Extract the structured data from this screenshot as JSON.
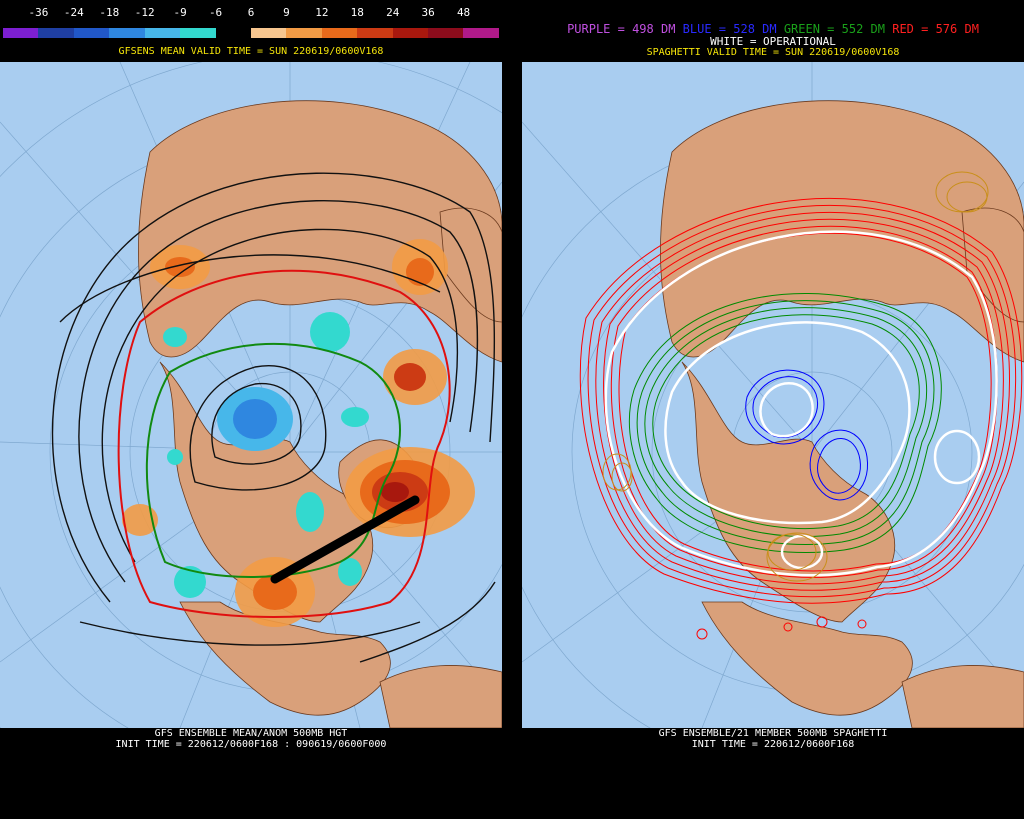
{
  "left": {
    "scale_labels": [
      "-36",
      "-24",
      "-18",
      "-12",
      "-9",
      "-6",
      "6",
      "9",
      "12",
      "18",
      "24",
      "36",
      "48"
    ],
    "scale_colors": [
      "#7d1fd1",
      "#1f3fa3",
      "#2158c9",
      "#2f87e0",
      "#47b7ea",
      "#33d9cf",
      "#000000",
      "#f7c68f",
      "#f29b45",
      "#e86a1b",
      "#cc3b14",
      "#a8180e",
      "#8c0c1c",
      "#b01a8a"
    ],
    "valid_title": "GFSENS MEAN VALID TIME = SUN 220619/0600V168",
    "bottom_title": "GFS ENSEMBLE MEAN/ANOM 500MB HGT",
    "init_line": "INIT TIME = 220612/0600F168 : 090619/0600F000"
  },
  "right": {
    "legend_purple": "PURPLE = 498 DM",
    "legend_blue": "BLUE = 528 DM",
    "legend_green": "GREEN = 552 DM",
    "legend_red": "RED = 576 DM",
    "legend_white": "WHITE = OPERATIONAL",
    "valid_title": "SPAGHETTI VALID TIME = SUN 220619/0600V168",
    "bottom_title": "GFS ENSEMBLE/21 MEMBER 500MB SPAGHETTI",
    "init_line": "INIT TIME = 220612/0600F168"
  },
  "colors": {
    "ocean": "#a9cdf0",
    "land": "#d9a07a",
    "border": "#6b3a1e",
    "spaghetti_red": "#ff0000",
    "spaghetti_green": "#008a00",
    "spaghetti_blue": "#0000ff",
    "spaghetti_gold": "#c98f1a"
  }
}
